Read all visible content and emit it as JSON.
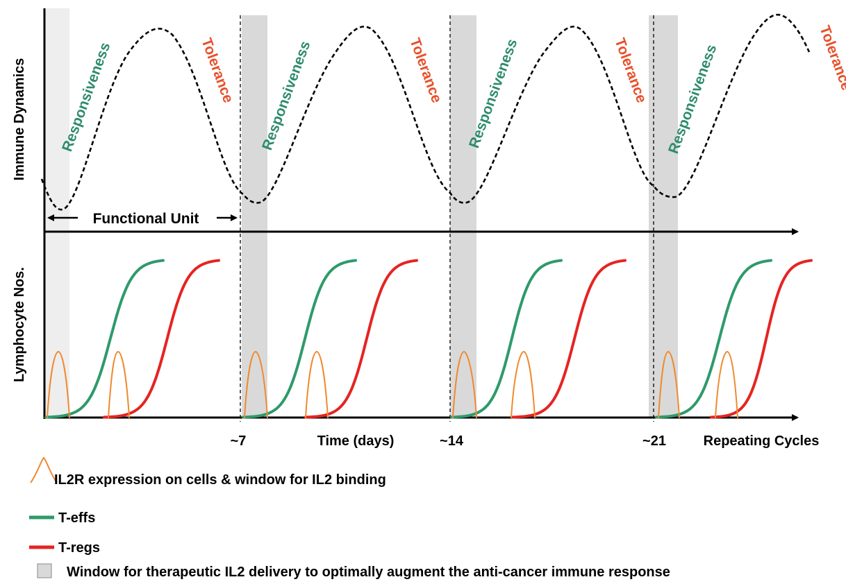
{
  "axes": {
    "top_ylabel": "Immune Dynamics",
    "bottom_ylabel": "Lymphocyte Nos.",
    "xlabel": "Time (days)",
    "repeat_label": "Repeating Cycles",
    "ticks": [
      "~7",
      "~14",
      "~21"
    ]
  },
  "phases": {
    "responsiveness": "Responsiveness",
    "tolerance": "Tolerance"
  },
  "functional_unit": "Functional Unit",
  "legend": {
    "il2r": "IL2R expression on cells & window for IL2 binding",
    "teffs": "T-effs",
    "tregs": "T-regs",
    "window": "Window for therapeutic IL2 delivery to optimally augment the anti-cancer immune response"
  },
  "colors": {
    "responsiveness": "#2e8b6e",
    "tolerance": "#e8502a",
    "teffs": "#2e9a6a",
    "tregs": "#e52421",
    "il2r": "#f08a30",
    "window": "#d9d9d9",
    "window_first": "#eeeeee"
  }
}
